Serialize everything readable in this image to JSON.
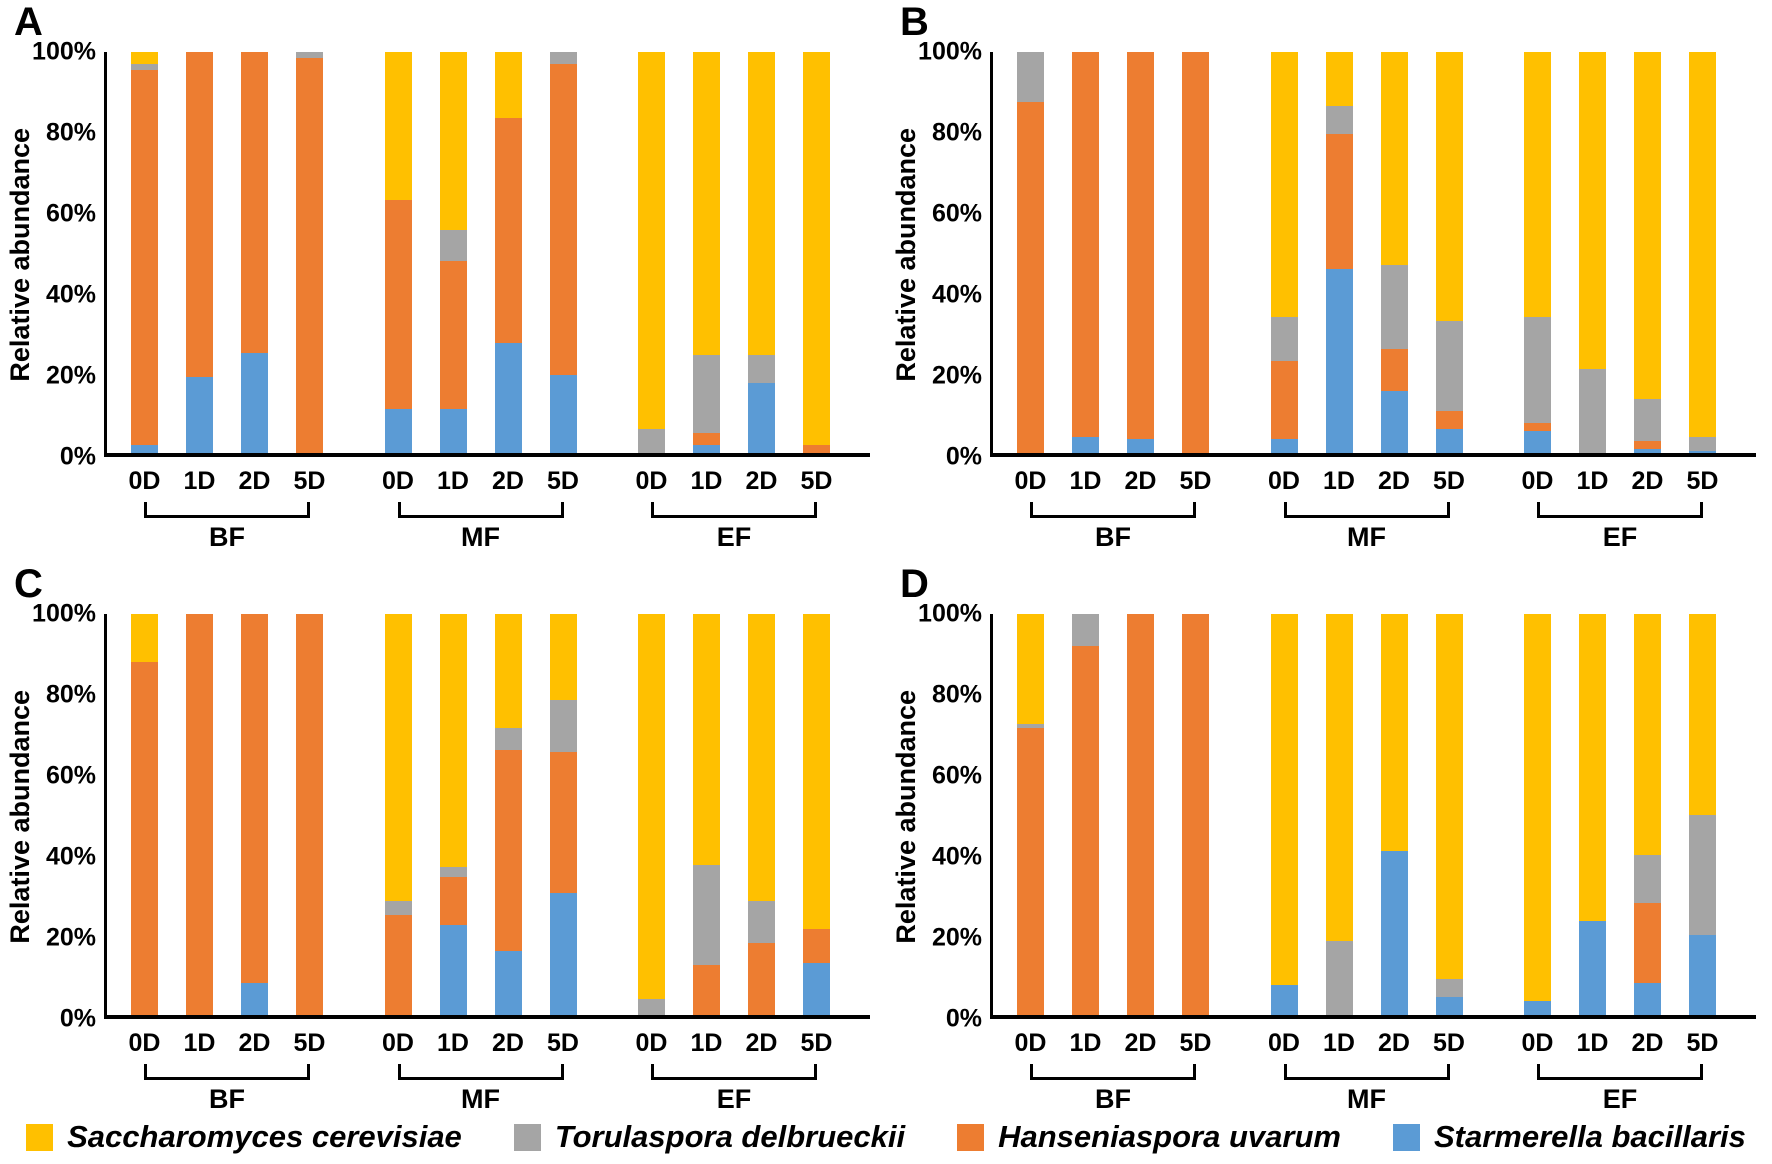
{
  "figure_title": "",
  "axis": {
    "ylabel": "Relative abundance",
    "yticks_percent": [
      0,
      20,
      40,
      60,
      80,
      100
    ]
  },
  "timepoints": [
    "0D",
    "1D",
    "2D",
    "5D"
  ],
  "group_names": [
    "BF",
    "MF",
    "EF"
  ],
  "series_bottom_to_top": [
    {
      "key": "sb",
      "name": "Starmerella bacillaris",
      "color": "#5B9BD5"
    },
    {
      "key": "hu",
      "name": "Hanseniaspora uvarum",
      "color": "#ED7D31"
    },
    {
      "key": "td",
      "name": "Torulaspora delbrueckii",
      "color": "#A5A5A5"
    },
    {
      "key": "sc",
      "name": "Saccharomyces cerevisiae",
      "color": "#FFC000"
    }
  ],
  "legend": {
    "items": [
      {
        "label": "Saccharomyces cerevisiae",
        "color": "#FFC000"
      },
      {
        "label": "Torulaspora delbrueckii",
        "color": "#A5A5A5"
      },
      {
        "label": "Hanseniaspora uvarum",
        "color": "#ED7D31"
      },
      {
        "label": "Starmerella bacillaris",
        "color": "#5B9BD5"
      }
    ]
  },
  "chart_data": [
    {
      "panel": "A",
      "type": "bar",
      "stacked": true,
      "ylabel": "Relative abundance",
      "ylim": [
        0,
        100
      ],
      "yticks": [
        "0%",
        "20%",
        "40%",
        "60%",
        "80%",
        "100%"
      ],
      "grid": false,
      "unit": "percent",
      "groups": [
        {
          "name": "BF",
          "bars": [
            {
              "t": "0D",
              "sb": 2,
              "hu": 93.5,
              "td": 1.5,
              "sc": 3
            },
            {
              "t": "1D",
              "sb": 19,
              "hu": 81,
              "td": 0,
              "sc": 0
            },
            {
              "t": "2D",
              "sb": 25,
              "hu": 75,
              "td": 0,
              "sc": 0
            },
            {
              "t": "5D",
              "sb": 0,
              "hu": 98.5,
              "td": 1.5,
              "sc": 0
            }
          ]
        },
        {
          "name": "MF",
          "bars": [
            {
              "t": "0D",
              "sb": 11,
              "hu": 52,
              "td": 0,
              "sc": 37
            },
            {
              "t": "1D",
              "sb": 11,
              "hu": 37,
              "td": 7.5,
              "sc": 44.5
            },
            {
              "t": "2D",
              "sb": 27.5,
              "hu": 56,
              "td": 0,
              "sc": 16.5
            },
            {
              "t": "5D",
              "sb": 19.5,
              "hu": 77.5,
              "td": 3,
              "sc": 0
            }
          ]
        },
        {
          "name": "EF",
          "bars": [
            {
              "t": "0D",
              "sb": 0,
              "hu": 0,
              "td": 6,
              "sc": 94
            },
            {
              "t": "1D",
              "sb": 2,
              "hu": 3,
              "td": 19.5,
              "sc": 75.5
            },
            {
              "t": "2D",
              "sb": 17.5,
              "hu": 0,
              "td": 7,
              "sc": 75.5
            },
            {
              "t": "5D",
              "sb": 0,
              "hu": 2,
              "td": 0,
              "sc": 98
            }
          ]
        }
      ]
    },
    {
      "panel": "B",
      "type": "bar",
      "stacked": true,
      "ylabel": "Relative abundance",
      "ylim": [
        0,
        100
      ],
      "yticks": [
        "0%",
        "20%",
        "40%",
        "60%",
        "80%",
        "100%"
      ],
      "grid": false,
      "unit": "percent",
      "groups": [
        {
          "name": "BF",
          "bars": [
            {
              "t": "0D",
              "sb": 0,
              "hu": 87.5,
              "td": 12.5,
              "sc": 0
            },
            {
              "t": "1D",
              "sb": 4,
              "hu": 96,
              "td": 0,
              "sc": 0
            },
            {
              "t": "2D",
              "sb": 3.5,
              "hu": 96.5,
              "td": 0,
              "sc": 0
            },
            {
              "t": "5D",
              "sb": 0,
              "hu": 100,
              "td": 0,
              "sc": 0
            }
          ]
        },
        {
          "name": "MF",
          "bars": [
            {
              "t": "0D",
              "sb": 3.5,
              "hu": 19.5,
              "td": 11,
              "sc": 66
            },
            {
              "t": "1D",
              "sb": 46,
              "hu": 33.5,
              "td": 7,
              "sc": 13.5
            },
            {
              "t": "2D",
              "sb": 15.5,
              "hu": 10.5,
              "td": 21,
              "sc": 53
            },
            {
              "t": "5D",
              "sb": 6,
              "hu": 4.5,
              "td": 22.5,
              "sc": 67
            }
          ]
        },
        {
          "name": "EF",
          "bars": [
            {
              "t": "0D",
              "sb": 5.5,
              "hu": 2,
              "td": 26.5,
              "sc": 66
            },
            {
              "t": "1D",
              "sb": 0,
              "hu": 0,
              "td": 21,
              "sc": 79
            },
            {
              "t": "2D",
              "sb": 1,
              "hu": 2,
              "td": 10.5,
              "sc": 86.5
            },
            {
              "t": "5D",
              "sb": 0.5,
              "hu": 0,
              "td": 3.5,
              "sc": 96
            }
          ]
        }
      ]
    },
    {
      "panel": "C",
      "type": "bar",
      "stacked": true,
      "ylabel": "Relative abundance",
      "ylim": [
        0,
        100
      ],
      "yticks": [
        "0%",
        "20%",
        "40%",
        "60%",
        "80%",
        "100%"
      ],
      "grid": false,
      "unit": "percent",
      "groups": [
        {
          "name": "BF",
          "bars": [
            {
              "t": "0D",
              "sb": 0,
              "hu": 88,
              "td": 0,
              "sc": 12
            },
            {
              "t": "1D",
              "sb": 0,
              "hu": 100,
              "td": 0,
              "sc": 0
            },
            {
              "t": "2D",
              "sb": 8,
              "hu": 92,
              "td": 0,
              "sc": 0
            },
            {
              "t": "5D",
              "sb": 0,
              "hu": 100,
              "td": 0,
              "sc": 0
            }
          ]
        },
        {
          "name": "MF",
          "bars": [
            {
              "t": "0D",
              "sb": 0,
              "hu": 25,
              "td": 3.5,
              "sc": 71.5
            },
            {
              "t": "1D",
              "sb": 22.5,
              "hu": 12,
              "td": 2.5,
              "sc": 63
            },
            {
              "t": "2D",
              "sb": 16,
              "hu": 50,
              "td": 5.5,
              "sc": 28.5
            },
            {
              "t": "5D",
              "sb": 30.5,
              "hu": 35,
              "td": 13,
              "sc": 21.5
            }
          ]
        },
        {
          "name": "EF",
          "bars": [
            {
              "t": "0D",
              "sb": 0,
              "hu": 0,
              "td": 4,
              "sc": 96
            },
            {
              "t": "1D",
              "sb": 0,
              "hu": 12.5,
              "td": 25,
              "sc": 62.5
            },
            {
              "t": "2D",
              "sb": 0,
              "hu": 18,
              "td": 10.5,
              "sc": 71.5
            },
            {
              "t": "5D",
              "sb": 13,
              "hu": 8.5,
              "td": 0,
              "sc": 78.5
            }
          ]
        }
      ]
    },
    {
      "panel": "D",
      "type": "bar",
      "stacked": true,
      "ylabel": "Relative abundance",
      "ylim": [
        0,
        100
      ],
      "yticks": [
        "0%",
        "20%",
        "40%",
        "60%",
        "80%",
        "100%"
      ],
      "grid": false,
      "unit": "percent",
      "groups": [
        {
          "name": "BF",
          "bars": [
            {
              "t": "0D",
              "sb": 0,
              "hu": 71.5,
              "td": 1,
              "sc": 27.5
            },
            {
              "t": "1D",
              "sb": 0,
              "hu": 92,
              "td": 8,
              "sc": 0
            },
            {
              "t": "2D",
              "sb": 0,
              "hu": 100,
              "td": 0,
              "sc": 0
            },
            {
              "t": "5D",
              "sb": 0,
              "hu": 100,
              "td": 0,
              "sc": 0
            }
          ]
        },
        {
          "name": "MF",
          "bars": [
            {
              "t": "0D",
              "sb": 7.5,
              "hu": 0,
              "td": 0,
              "sc": 92.5
            },
            {
              "t": "1D",
              "sb": 0,
              "hu": 0,
              "td": 18.5,
              "sc": 81.5
            },
            {
              "t": "2D",
              "sb": 41,
              "hu": 0,
              "td": 0,
              "sc": 59
            },
            {
              "t": "5D",
              "sb": 4.5,
              "hu": 0,
              "td": 4.5,
              "sc": 91
            }
          ]
        },
        {
          "name": "EF",
          "bars": [
            {
              "t": "0D",
              "sb": 3.5,
              "hu": 0,
              "td": 0,
              "sc": 96.5
            },
            {
              "t": "1D",
              "sb": 23.5,
              "hu": 0,
              "td": 0,
              "sc": 76.5
            },
            {
              "t": "2D",
              "sb": 8,
              "hu": 20,
              "td": 12,
              "sc": 60
            },
            {
              "t": "5D",
              "sb": 20,
              "hu": 0,
              "td": 30,
              "sc": 50
            }
          ]
        }
      ]
    }
  ]
}
